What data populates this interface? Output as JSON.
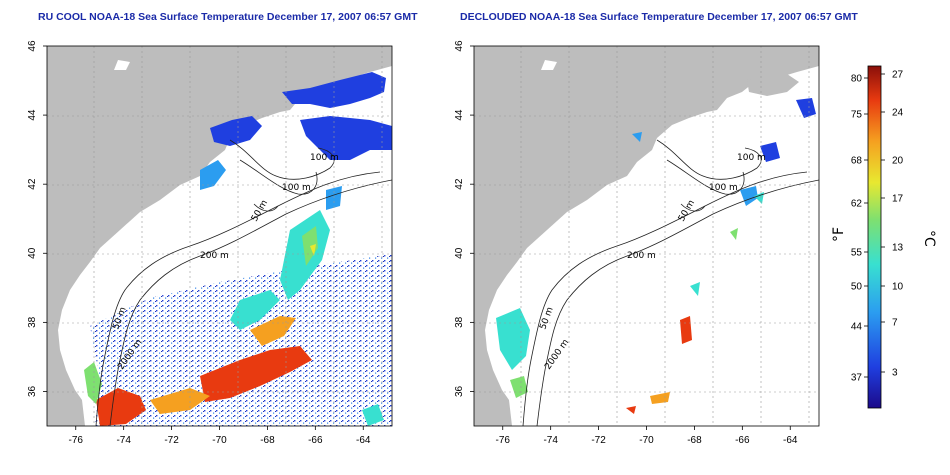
{
  "titles": {
    "left": "RU COOL NOAA-18 Sea Surface Temperature December 17, 2007 06:57 GMT",
    "right": "DECLOUDED NOAA-18 Sea Surface Temperature December 17, 2007 06:57 GMT"
  },
  "map_axes": {
    "lon_range": [
      -77.2,
      -62.8
    ],
    "lat_range": [
      35,
      46
    ],
    "lon_ticks": [
      "-76",
      "-74",
      "-72",
      "-70",
      "-68",
      "-66",
      "-64"
    ],
    "lat_ticks": [
      "36",
      "38",
      "40",
      "42",
      "44",
      "46"
    ]
  },
  "contour_labels": {
    "m100a": "100 m",
    "m100b": "100 m",
    "m50": "50 m",
    "m200": "200 m",
    "m50s": "50 m",
    "m2000": "2000 m"
  },
  "colorbar": {
    "fahrenheit_unit": "°F",
    "celsius_unit": "°C",
    "fahrenheit_ticks": [
      "80",
      "75",
      "68",
      "62",
      "55",
      "50",
      "44",
      "37"
    ],
    "celsius_ticks": [
      "27",
      "24",
      "20",
      "17",
      "13",
      "10",
      "7",
      "3"
    ],
    "colors": [
      "#1c0a8a",
      "#1f3fe0",
      "#2b9df0",
      "#38e0d0",
      "#7ee070",
      "#e8e830",
      "#f5a020",
      "#e83a10",
      "#8a0f0a"
    ]
  },
  "colors": {
    "land": "#bdbdbd",
    "ocean": "#ffffff",
    "grid": "#999999"
  }
}
